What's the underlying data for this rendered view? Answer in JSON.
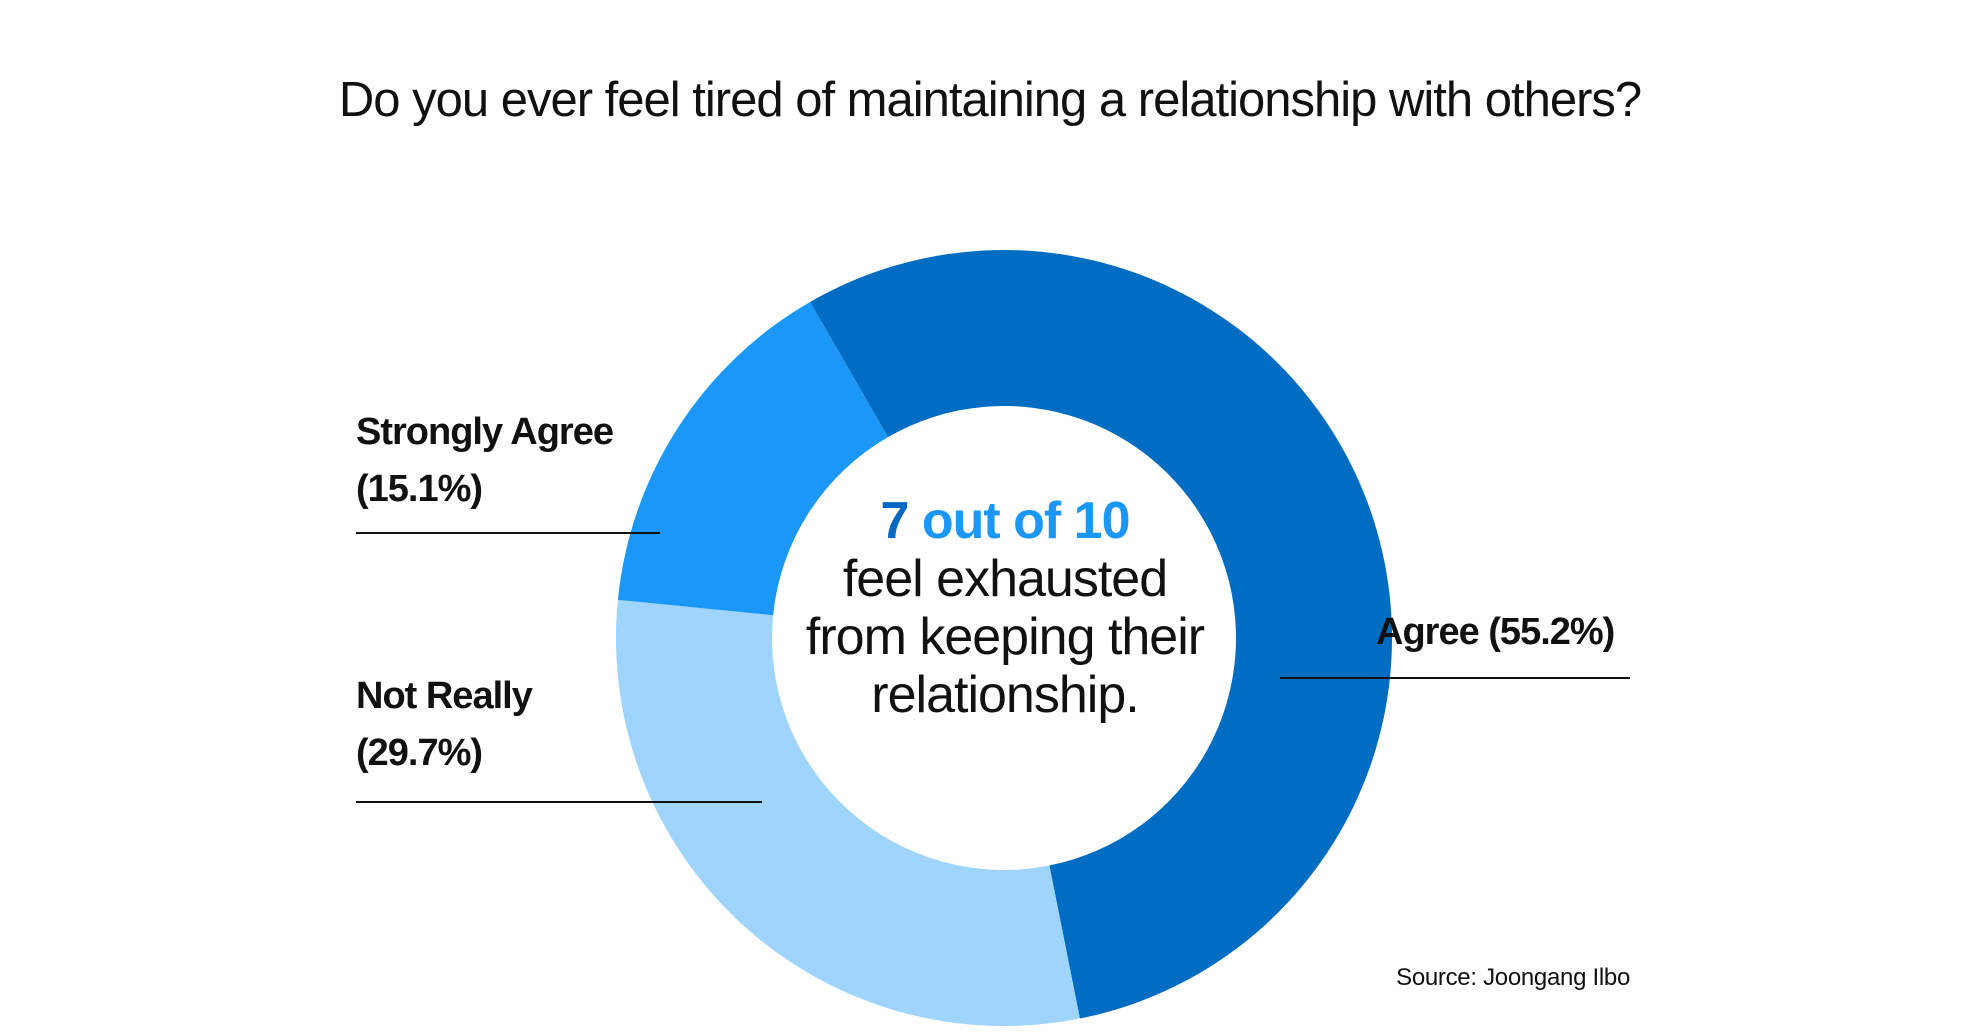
{
  "chart_data": {
    "type": "pie",
    "title": "Do you ever feel tired of maintaining a relationship with others?",
    "donut": true,
    "categories": [
      "Agree",
      "Not Really",
      "Strongly Agree"
    ],
    "values": [
      55.2,
      29.7,
      15.1
    ],
    "colors": [
      "#006cc2",
      "#9fd4fc",
      "#1a97f7"
    ],
    "labels": {
      "strongly_agree": {
        "name": "Strongly Agree",
        "pct": "(15.1%)"
      },
      "not_really": {
        "name": "Not Really",
        "pct": "(29.7%)"
      },
      "agree": {
        "name": "Agree",
        "pct": "(55.2%)"
      }
    },
    "center": {
      "highlight_num": "7",
      "highlight_rest": " out of 10",
      "line2": "feel exhausted",
      "line3": "from keeping their",
      "line4": "relationship."
    },
    "source": "Source: Joongang Ilbo"
  }
}
